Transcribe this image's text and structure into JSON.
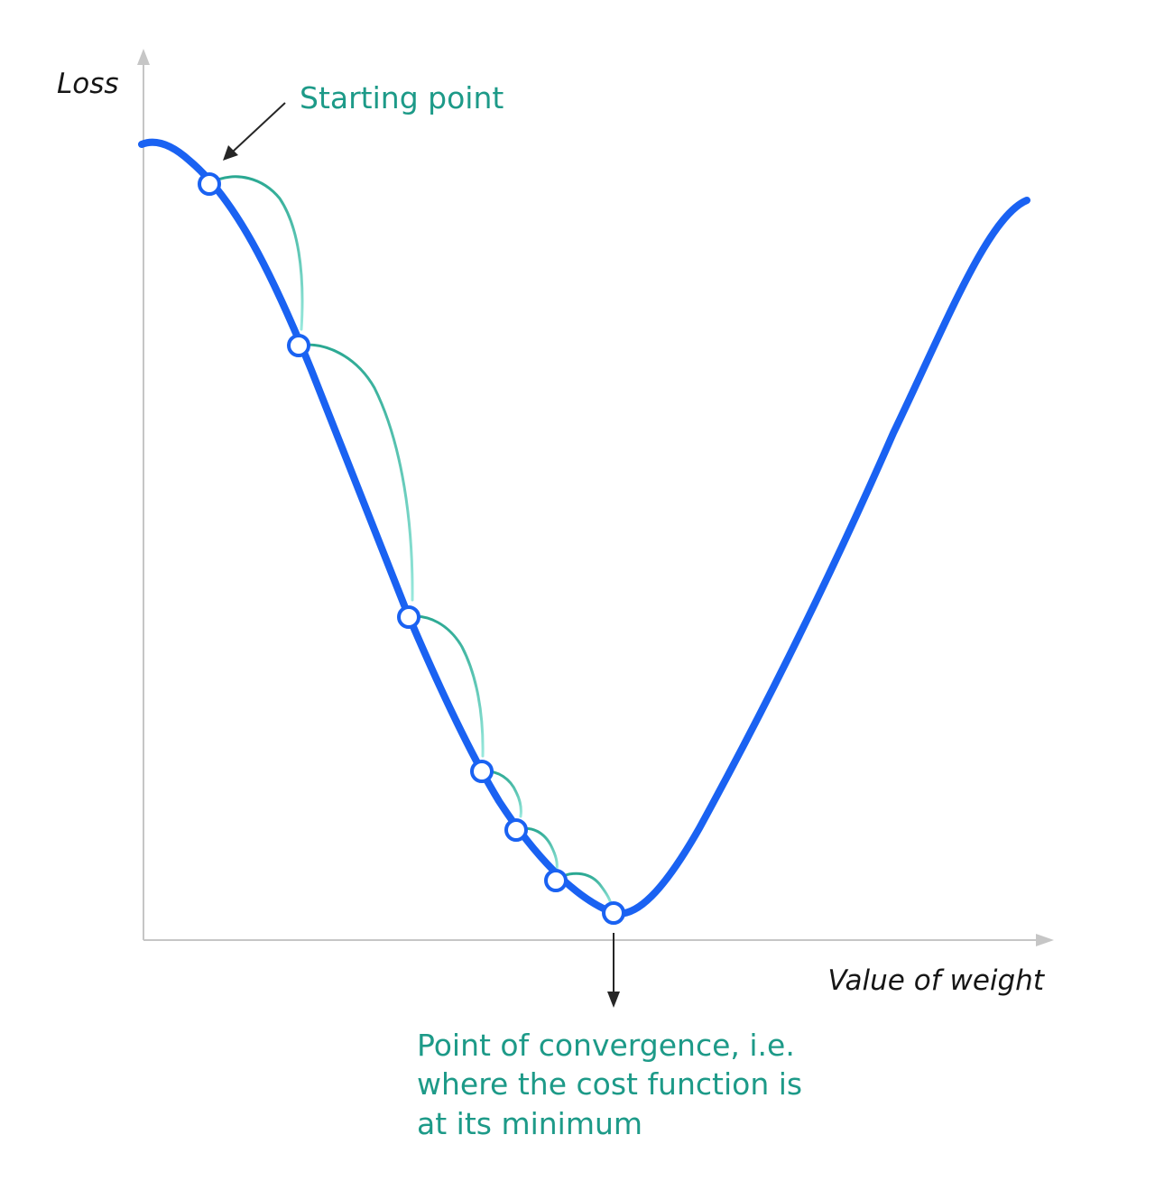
{
  "labels": {
    "y_axis": "Loss",
    "x_axis": "Value of weight",
    "start": "Starting point",
    "convergence": [
      "Point of convergence, i.e.",
      "where the cost function is",
      "at its minimum"
    ]
  },
  "colors": {
    "curve": "#1a62f2",
    "steps": "#2aa892",
    "steps_light": "#98e8dc",
    "annotation_text": "#1d9a88",
    "axis": "#c6c6c6",
    "arrow": "#262626"
  },
  "descent_steps_count": 6
}
